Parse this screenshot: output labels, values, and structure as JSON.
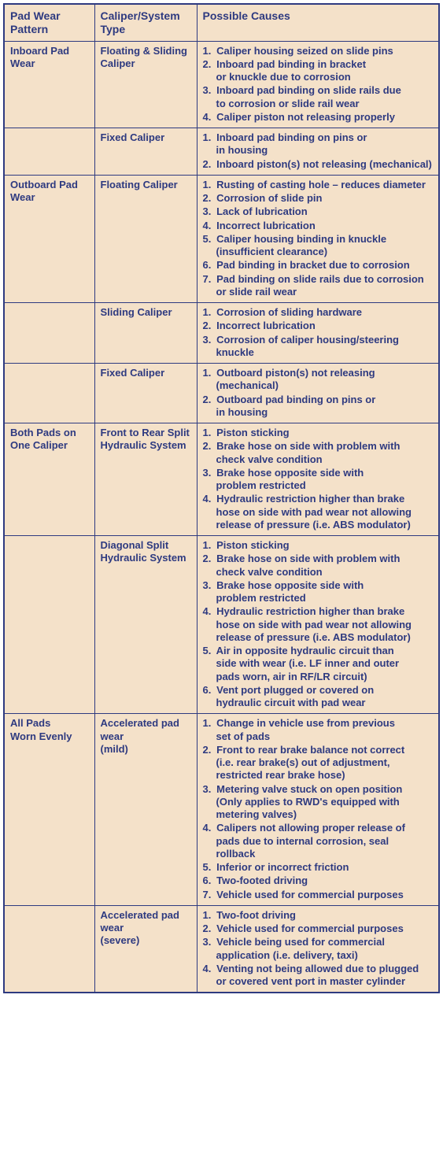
{
  "background_color": "#f4e1c9",
  "border_color": "#2e3a80",
  "text_color": "#2e3a80",
  "font_family": "Arial Narrow",
  "headers": {
    "pattern": "Pad Wear\nPattern",
    "type": "Caliper/System\nType",
    "causes": "Possible Causes"
  },
  "rows": [
    {
      "pattern": "Inboard Pad Wear",
      "type": "Floating & Sliding\nCaliper",
      "causes": [
        "Caliper housing seized on slide pins",
        "Inboard pad binding in bracket\n   or knuckle due to corrosion",
        "Inboard pad binding on slide rails due\n   to corrosion or slide rail wear",
        "Caliper piston not releasing properly"
      ]
    },
    {
      "pattern": "",
      "type": "Fixed Caliper",
      "causes": [
        "Inboard pad binding on pins or\n   in housing",
        "Inboard piston(s) not releasing (mechanical)"
      ]
    },
    {
      "pattern": "Outboard Pad Wear",
      "type": "Floating Caliper",
      "causes": [
        "Rusting of casting hole – reduces diameter",
        "Corrosion of slide pin",
        "Lack of lubrication",
        "Incorrect lubrication",
        "Caliper housing binding in knuckle\n   (insufficient clearance)",
        "Pad binding in bracket due to corrosion",
        "Pad binding on slide rails due to corrosion\n   or slide rail wear"
      ]
    },
    {
      "pattern": "",
      "type": "Sliding Caliper",
      "causes": [
        "Corrosion of sliding hardware",
        "Incorrect lubrication",
        "Corrosion of caliper housing/steering\n   knuckle"
      ]
    },
    {
      "pattern": "",
      "type": "Fixed Caliper",
      "causes": [
        "Outboard piston(s) not releasing (mechanical)",
        "Outboard pad binding on pins or\n   in housing"
      ]
    },
    {
      "pattern": "Both Pads on\nOne Caliper",
      "type": "Front to Rear Split\nHydraulic System",
      "causes": [
        "Piston sticking",
        "Brake hose on side with problem with\n   check valve condition",
        "Brake hose opposite side with\n   problem restricted",
        "Hydraulic restriction higher than brake\n   hose on side with pad wear not allowing\n   release of pressure (i.e. ABS modulator)"
      ]
    },
    {
      "pattern": "",
      "type": "Diagonal Split\nHydraulic System",
      "causes": [
        "Piston sticking",
        "Brake hose on side with problem with\n   check valve condition",
        "Brake hose opposite side with\n   problem restricted",
        "Hydraulic restriction higher than brake\n   hose on side with pad wear not allowing\n   release of pressure (i.e. ABS modulator)",
        "Air in opposite hydraulic circuit than\n   side with wear (i.e. LF inner and outer\n   pads worn, air in RF/LR circuit)",
        "Vent port plugged or covered on\n   hydraulic circuit with pad wear"
      ]
    },
    {
      "pattern": "All Pads\nWorn Evenly",
      "type": "Accelerated pad wear\n(mild)",
      "causes": [
        "Change in vehicle use from previous\n   set of pads",
        "Front to rear brake balance not correct\n   (i.e. rear brake(s) out of adjustment,\n   restricted rear brake hose)",
        "Metering valve stuck on open position\n   (Only applies to RWD's equipped with\n   metering valves)",
        "Calipers not allowing proper release of\n   pads due to internal corrosion, seal\n   rollback",
        "Inferior or incorrect friction",
        "Two-footed driving",
        "Vehicle used for commercial purposes"
      ]
    },
    {
      "pattern": "",
      "type": "Accelerated pad wear\n(severe)",
      "causes": [
        "Two-foot driving",
        "Vehicle used for commercial purposes",
        "Vehicle being used for commercial\n   application (i.e. delivery, taxi)",
        "Venting not being allowed due to plugged\n   or covered vent port in master cylinder"
      ]
    }
  ]
}
